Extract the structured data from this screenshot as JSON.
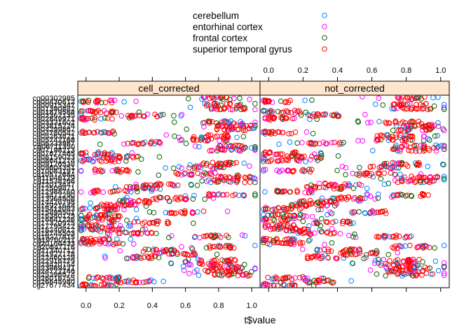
{
  "chart_data": {
    "type": "scatter",
    "xlabel": "t$value",
    "xlim": [
      -0.05,
      1.05
    ],
    "x_ticks": [
      "0.0",
      "0.2",
      "0.4",
      "0.6",
      "0.8",
      "1.0"
    ],
    "panels": [
      "cell_corrected",
      "not_corrected"
    ],
    "legend_position": "top",
    "strip_color": "#ffe5cc",
    "series": [
      {
        "name": "cerebellum",
        "color": "#0080ff"
      },
      {
        "name": "entorhinal cortex",
        "color": "#ff00ff"
      },
      {
        "name": "frontal cortex",
        "color": "#006400"
      },
      {
        "name": "superior temporal gyrus",
        "color": "#ff0000"
      }
    ],
    "y_categories": [
      "cg27677434",
      "cg26645980",
      "cg26016755",
      "cg25396574",
      "cg24722146",
      "cg23869421",
      "cg23420754",
      "cg22916779",
      "cg22460129",
      "cg21922178",
      "cg21340712",
      "cg20847116",
      "cg20166433",
      "cg19700211",
      "cg19227815",
      "cg18745503",
      "cg18240612",
      "cg17795422",
      "cg17320975",
      "cg16841226",
      "cg16380125",
      "cg15895501",
      "cg15412083",
      "cg14921644",
      "cg14426798",
      "cg13964508",
      "cg13472290",
      "cg12988760",
      "cg12509871",
      "cg12013447",
      "cg11538266",
      "cg11046129",
      "cg10572684",
      "cg10083197",
      "cg09604351",
      "cg09126538",
      "cg08641274",
      "cg08159023",
      "cg07677465",
      "cg07198213",
      "cg06711350",
      "cg06233987",
      "cg05742168",
      "cg05263821",
      "cg04780542",
      "cg04299867",
      "cg03815224",
      "cg03331602",
      "cg02849971",
      "cg02362135",
      "cg01879564",
      "cg01390882",
      "cg00915347",
      "cg00430612",
      "cg00302985"
    ],
    "row_medians": {
      "cell_corrected": [
        0.05,
        0.3,
        0.1,
        0.88,
        0.82,
        0.86,
        0.78,
        0.8,
        0.35,
        0.55,
        0.45,
        0.85,
        0.1,
        0.05,
        0.75,
        0.3,
        0.12,
        0.05,
        0.4,
        0.07,
        0.1,
        0.6,
        0.08,
        0.2,
        0.3,
        0.5,
        0.85,
        0.15,
        0.35,
        0.45,
        0.88,
        0.9,
        0.65,
        0.15,
        0.72,
        0.8,
        0.07,
        0.2,
        0.05,
        0.85,
        0.9,
        0.35,
        0.75,
        0.75,
        0.07,
        0.88,
        0.9,
        0.8,
        0.05,
        0.35,
        0.08,
        0.85,
        0.83,
        0.05,
        0.82
      ],
      "not_corrected": [
        0.05,
        0.28,
        0.1,
        0.85,
        0.8,
        0.84,
        0.76,
        0.78,
        0.32,
        0.52,
        0.43,
        0.83,
        0.1,
        0.05,
        0.73,
        0.28,
        0.12,
        0.05,
        0.38,
        0.07,
        0.1,
        0.58,
        0.08,
        0.2,
        0.28,
        0.48,
        0.83,
        0.15,
        0.33,
        0.43,
        0.86,
        0.88,
        0.63,
        0.15,
        0.7,
        0.78,
        0.07,
        0.2,
        0.05,
        0.83,
        0.88,
        0.33,
        0.73,
        0.73,
        0.07,
        0.86,
        0.88,
        0.78,
        0.05,
        0.33,
        0.08,
        0.83,
        0.81,
        0.05,
        0.8
      ]
    }
  },
  "legend": {
    "items": [
      "cerebellum",
      "entorhinal cortex",
      "frontal cortex",
      "superior temporal gyrus"
    ]
  }
}
